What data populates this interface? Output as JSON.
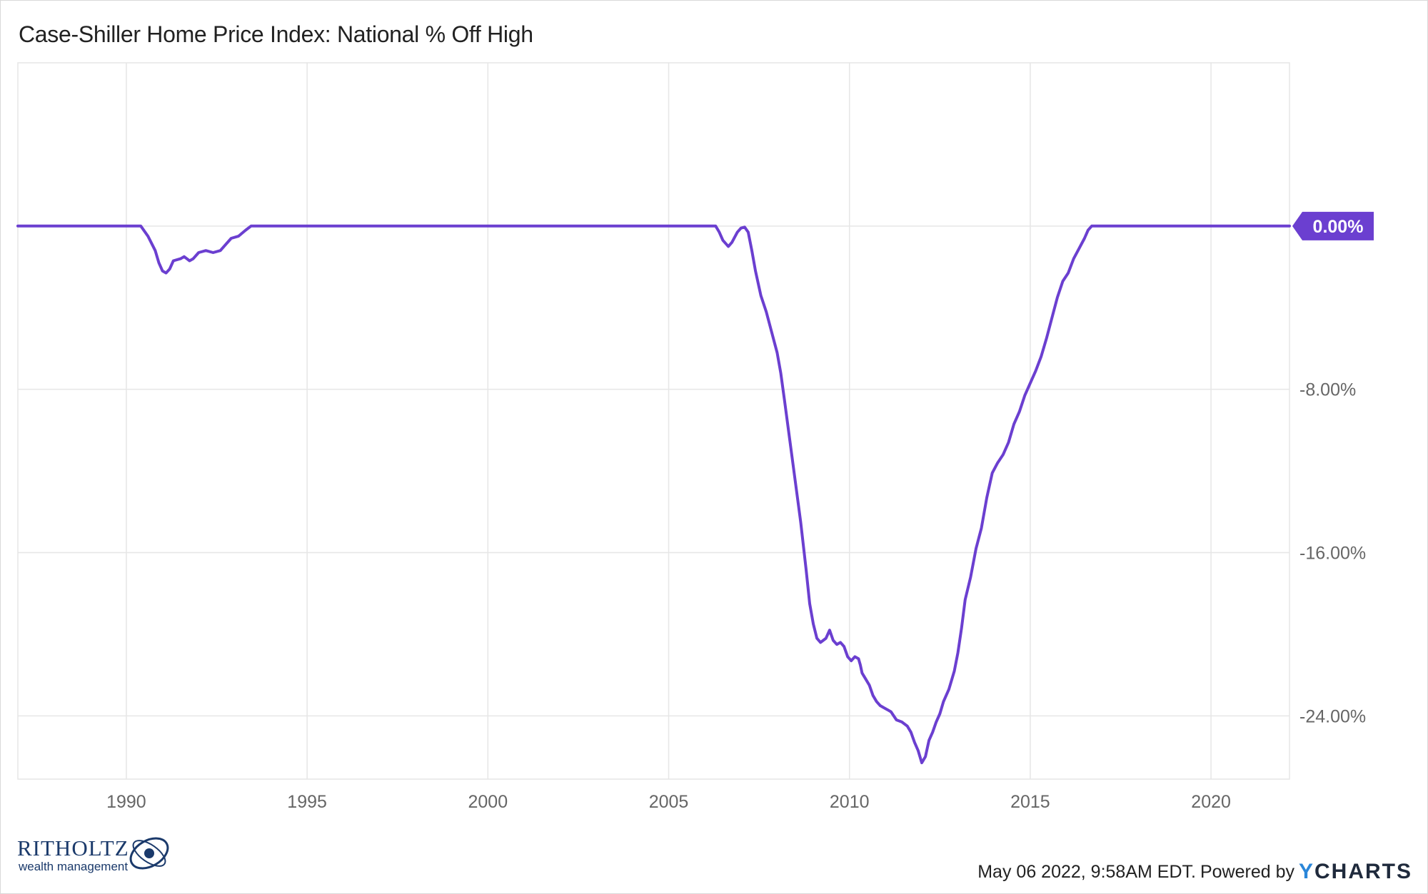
{
  "title": "Case-Shiller Home Price Index: National % Off High",
  "footer": {
    "timestamp": "May 06 2022, 9:58AM EDT.",
    "powered_by": "Powered by",
    "brand_y": "Y",
    "brand_rest": "CHARTS"
  },
  "logo": {
    "name": "RITHOLTZ",
    "tagline": "wealth management"
  },
  "colors": {
    "line": "#6b3fd0",
    "badge": "#6b3fd0",
    "grid": "#e6e6e6",
    "axis": "#cccccc"
  },
  "chart_data": {
    "type": "line",
    "title": "Case-Shiller Home Price Index: National % Off High",
    "xlim": [
      1987.0,
      2022.17
    ],
    "ylim": [
      -27.1,
      8.0
    ],
    "x_ticks": [
      1990,
      1995,
      2000,
      2005,
      2010,
      2015,
      2020
    ],
    "x_tick_labels": [
      "1990",
      "1995",
      "2000",
      "2005",
      "2010",
      "2015",
      "2020"
    ],
    "y_ticks": [
      0,
      -8,
      -16,
      -24
    ],
    "y_tick_labels": [
      "0.00%",
      "-8.00%",
      "-16.00%",
      "-24.00%"
    ],
    "grid": true,
    "last_value_label": "0.00%",
    "series": [
      {
        "x": [
          1987.0,
          1990.4,
          1990.6,
          1990.8,
          1990.9,
          1991.0,
          1991.1,
          1991.2,
          1991.3,
          1991.5,
          1991.6,
          1991.75,
          1991.85,
          1992.0,
          1992.2,
          1992.4,
          1992.6,
          1992.75,
          1992.9,
          1993.1,
          1993.3,
          1993.45,
          1993.55,
          1993.6,
          1995.0,
          2000.0,
          2006.3,
          2006.4,
          2006.5,
          2006.65,
          2006.75,
          2006.9,
          2007.0,
          2007.1,
          2007.2,
          2007.3,
          2007.4,
          2007.55,
          2007.7,
          2007.85,
          2008.0,
          2008.1,
          2008.2,
          2008.35,
          2008.5,
          2008.65,
          2008.8,
          2008.9,
          2009.0,
          2009.1,
          2009.2,
          2009.35,
          2009.45,
          2009.55,
          2009.65,
          2009.75,
          2009.85,
          2009.95,
          2010.05,
          2010.15,
          2010.25,
          2010.3,
          2010.35,
          2010.45,
          2010.55,
          2010.65,
          2010.75,
          2010.85,
          2010.95,
          2011.05,
          2011.15,
          2011.3,
          2011.45,
          2011.6,
          2011.7,
          2011.8,
          2011.9,
          2012.0,
          2012.1,
          2012.2,
          2012.3,
          2012.4,
          2012.5,
          2012.6,
          2012.75,
          2012.9,
          2013.0,
          2013.1,
          2013.2,
          2013.35,
          2013.5,
          2013.65,
          2013.8,
          2013.95,
          2014.1,
          2014.25,
          2014.4,
          2014.55,
          2014.7,
          2014.85,
          2015.0,
          2015.15,
          2015.3,
          2015.45,
          2015.6,
          2015.75,
          2015.9,
          2016.05,
          2016.2,
          2016.35,
          2016.5,
          2016.6,
          2016.7,
          2016.8,
          2016.9,
          2017.0,
          2020.0,
          2022.17
        ],
        "y": [
          0,
          0,
          -0.5,
          -1.2,
          -1.8,
          -2.2,
          -2.3,
          -2.1,
          -1.7,
          -1.6,
          -1.5,
          -1.7,
          -1.6,
          -1.3,
          -1.2,
          -1.3,
          -1.2,
          -0.9,
          -0.6,
          -0.5,
          -0.2,
          0,
          0,
          0,
          0,
          0,
          0,
          -0.3,
          -0.7,
          -1.0,
          -0.8,
          -0.3,
          -0.1,
          -0.05,
          -0.3,
          -1.2,
          -2.2,
          -3.4,
          -4.2,
          -5.2,
          -6.2,
          -7.2,
          -8.5,
          -10.5,
          -12.5,
          -14.5,
          -16.8,
          -18.5,
          -19.5,
          -20.2,
          -20.4,
          -20.2,
          -19.8,
          -20.3,
          -20.5,
          -20.4,
          -20.6,
          -21.1,
          -21.3,
          -21.1,
          -21.2,
          -21.5,
          -21.9,
          -22.2,
          -22.5,
          -23.0,
          -23.3,
          -23.5,
          -23.6,
          -23.7,
          -23.8,
          -24.2,
          -24.3,
          -24.5,
          -24.8,
          -25.3,
          -25.7,
          -26.3,
          -26.0,
          -25.2,
          -24.8,
          -24.3,
          -23.9,
          -23.3,
          -22.7,
          -21.8,
          -20.9,
          -19.7,
          -18.3,
          -17.2,
          -15.8,
          -14.8,
          -13.3,
          -12.1,
          -11.6,
          -11.2,
          -10.6,
          -9.7,
          -9.1,
          -8.3,
          -7.7,
          -7.1,
          -6.4,
          -5.5,
          -4.5,
          -3.5,
          -2.7,
          -2.3,
          -1.6,
          -1.1,
          -0.6,
          -0.2,
          0,
          0,
          0,
          0,
          0,
          0
        ]
      }
    ]
  }
}
